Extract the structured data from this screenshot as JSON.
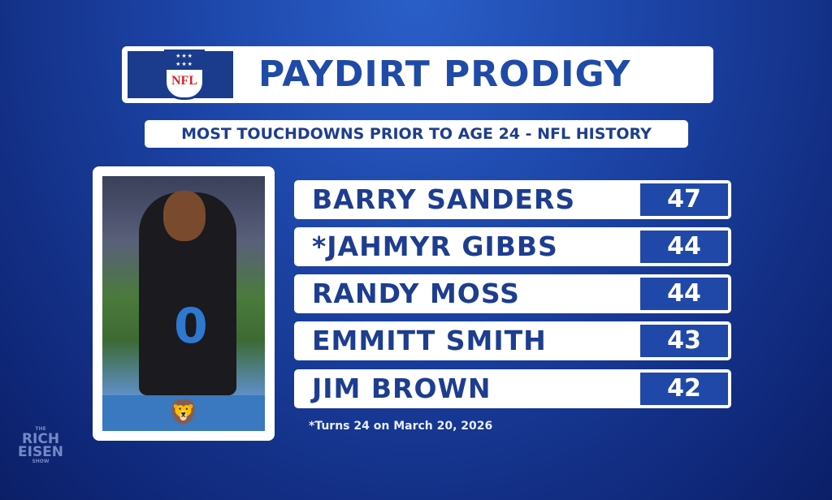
{
  "header": {
    "title": "PAYDIRT PRODIGY",
    "subtitle": "MOST TOUCHDOWNS PRIOR TO AGE 24 - NFL HISTORY",
    "logo": "NFL"
  },
  "rows": [
    {
      "name": "BARRY SANDERS",
      "value": "47"
    },
    {
      "name": "*JAHMYR GIBBS",
      "value": "44"
    },
    {
      "name": "RANDY MOSS",
      "value": "44"
    },
    {
      "name": "EMMITT SMITH",
      "value": "43"
    },
    {
      "name": "JIM BROWN",
      "value": "42"
    }
  ],
  "photo": {
    "jersey_number": "0",
    "team_icon": "lion-icon"
  },
  "footnote": "*Turns 24 on March 20, 2026",
  "watermark": {
    "line1": "THE",
    "line2": "RICH",
    "line3": "EISEN",
    "line4": "SHOW"
  },
  "colors": {
    "accent": "#1f4aa8",
    "number_box": "#2048a8"
  }
}
